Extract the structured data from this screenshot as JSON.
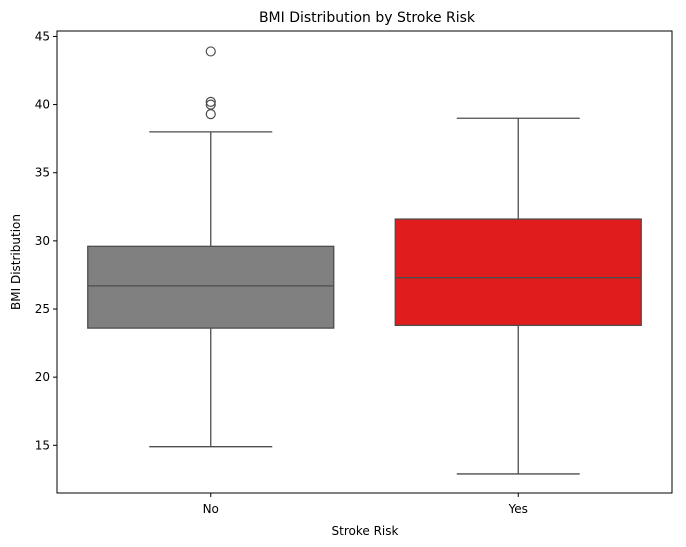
{
  "chart_data": {
    "type": "box",
    "title": "BMI Distribution by Stroke Risk",
    "xlabel": "Stroke Risk",
    "ylabel": "BMI Distribution",
    "ylim": [
      11.5,
      45.4
    ],
    "yticks": [
      15,
      20,
      25,
      30,
      35,
      40,
      45
    ],
    "grid": false,
    "legend": "none",
    "categories": [
      "No",
      "Yes"
    ],
    "series": [
      {
        "category": "No",
        "color": "#808080",
        "whisker_low": 14.9,
        "q1": 23.6,
        "median": 26.7,
        "q3": 29.6,
        "whisker_high": 38.0,
        "outliers": [
          39.3,
          40.0,
          40.2,
          43.9
        ]
      },
      {
        "category": "Yes",
        "color": "#e01c1c",
        "whisker_low": 12.9,
        "q1": 23.8,
        "median": 27.3,
        "q3": 31.6,
        "whisker_high": 39.0,
        "outliers": []
      }
    ],
    "line_color": "#4d4d4d"
  }
}
